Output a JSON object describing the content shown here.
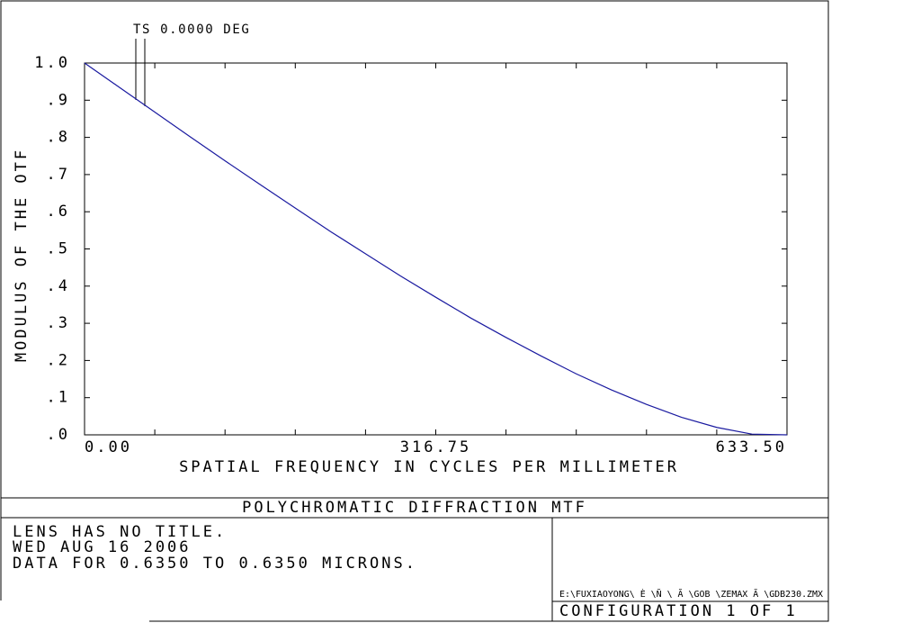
{
  "chart_data": {
    "type": "line",
    "title": "POLYCHROMATIC DIFFRACTION MTF",
    "xlabel": "SPATIAL FREQUENCY IN CYCLES PER MILLIMETER",
    "ylabel": "MODULUS OF THE OTF",
    "annotation": "TS 0.0000 DEG",
    "color": "#1a1aa0",
    "x": [
      0,
      31.675,
      63.35,
      95.025,
      126.7,
      158.375,
      190.05,
      221.725,
      253.4,
      285.075,
      316.75,
      348.425,
      380.1,
      411.775,
      443.45,
      475.125,
      506.8,
      538.475,
      570.15,
      601.825,
      633.5
    ],
    "values": [
      1.0,
      0.934,
      0.868,
      0.802,
      0.737,
      0.673,
      0.61,
      0.547,
      0.487,
      0.427,
      0.37,
      0.314,
      0.262,
      0.212,
      0.164,
      0.121,
      0.082,
      0.047,
      0.02,
      0.002,
      0
    ],
    "xlim": [
      0,
      633.5
    ],
    "ylim": [
      0,
      1
    ],
    "xticks": [
      {
        "value": 0,
        "label": "0.00"
      },
      {
        "value": 316.75,
        "label": "316.75"
      },
      {
        "value": 633.5,
        "label": "633.50"
      }
    ],
    "xminorticks": [
      63.35,
      126.7,
      190.05,
      253.4,
      380.1,
      443.45,
      506.8,
      570.15
    ],
    "yticks": [
      {
        "value": 0,
        "label": ".0"
      },
      {
        "value": 0.1,
        "label": ".1"
      },
      {
        "value": 0.2,
        "label": ".2"
      },
      {
        "value": 0.3,
        "label": ".3"
      },
      {
        "value": 0.4,
        "label": ".4"
      },
      {
        "value": 0.5,
        "label": ".5"
      },
      {
        "value": 0.6,
        "label": ".6"
      },
      {
        "value": 0.7,
        "label": ".7"
      },
      {
        "value": 0.8,
        "label": ".8"
      },
      {
        "value": 0.9,
        "label": ".9"
      },
      {
        "value": 1,
        "label": "1.0"
      }
    ]
  },
  "footer": {
    "lines": [
      "LENS HAS NO TITLE.",
      "WED AUG 16 2006",
      "DATA FOR 0.6350 TO 0.6350 MICRONS."
    ],
    "file": "E:\\FUXIAOYONG\\   È \\Ñ  \\   Ã \\GOB   \\ZEMAX Ã \\GDB230.ZMX",
    "configuration": "CONFIGURATION 1 OF 1"
  }
}
